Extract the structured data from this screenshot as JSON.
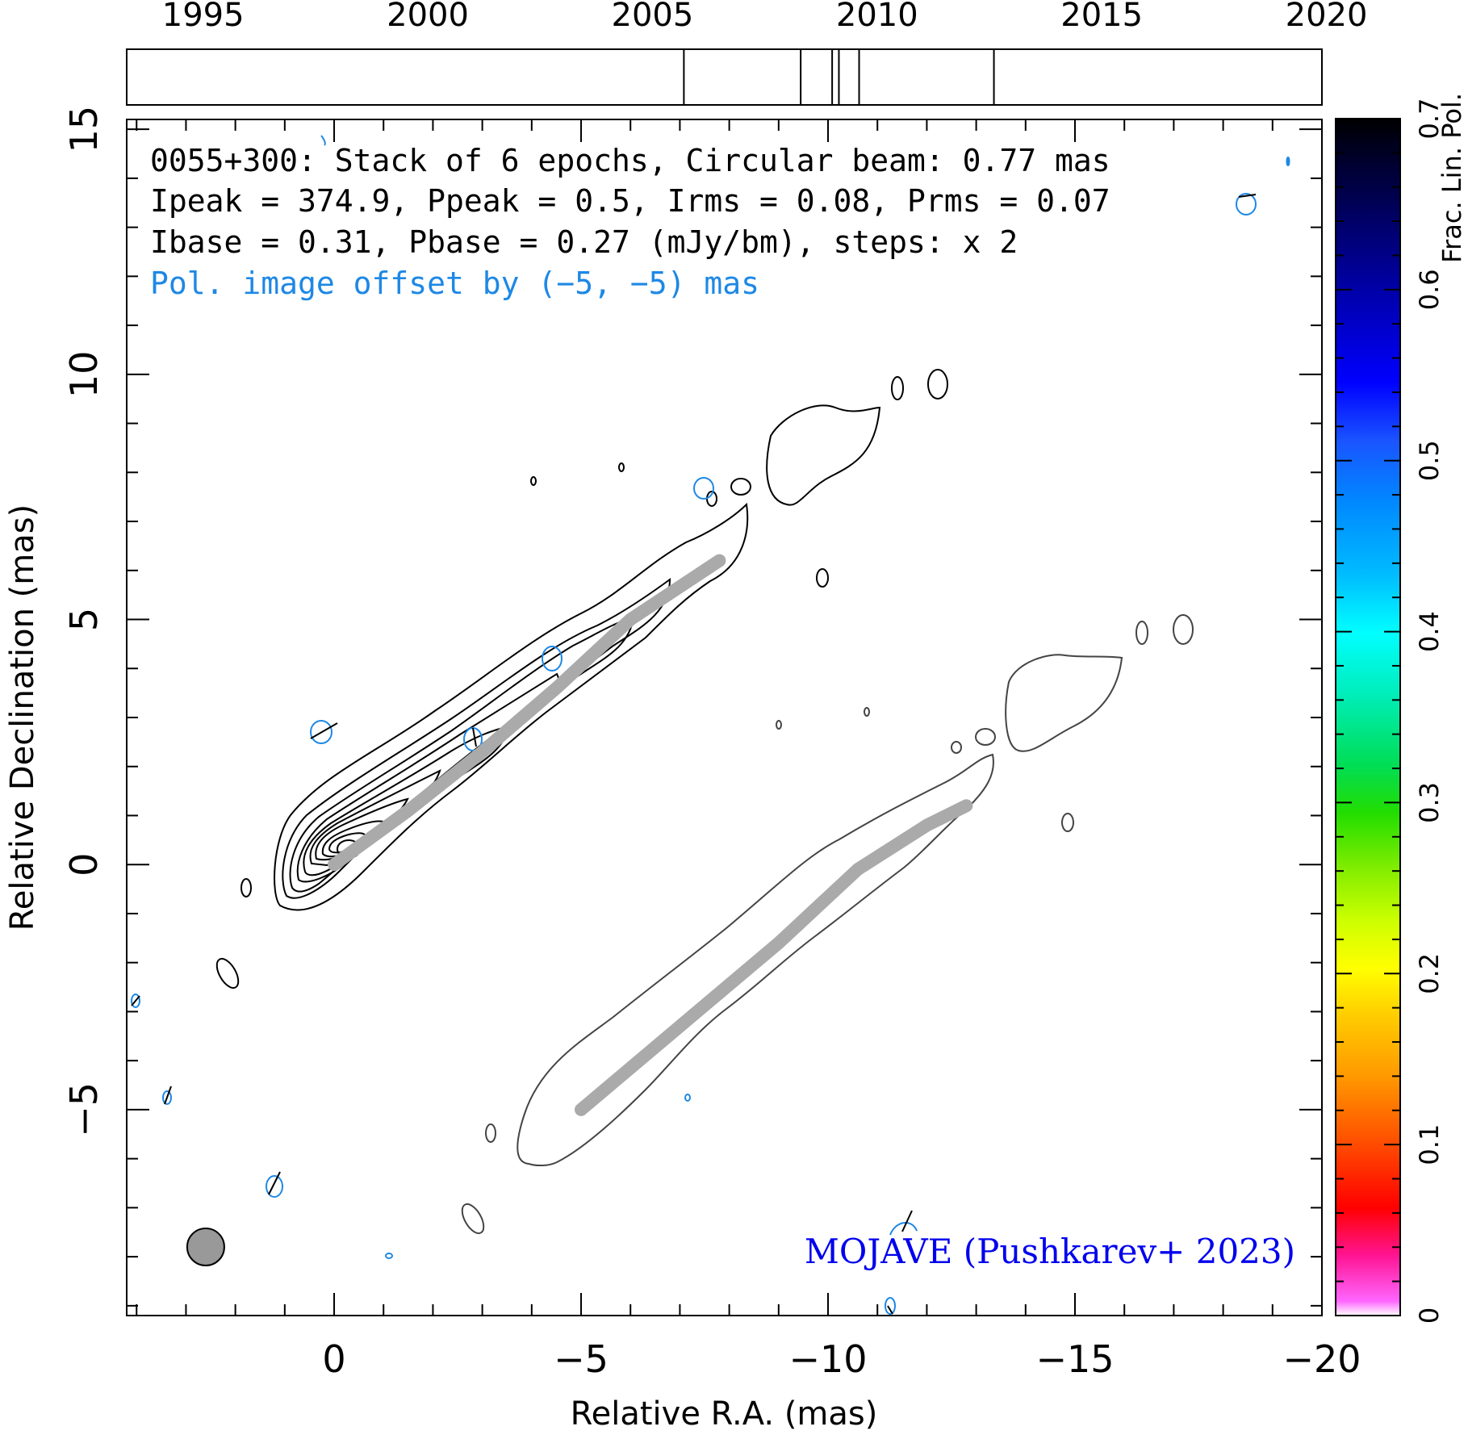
{
  "chart_data": {
    "type": "contour",
    "xlabel": "Relative R.A. (mas)",
    "ylabel": "Relative Declination (mas)",
    "xlim": [
      4.2,
      -20.0
    ],
    "ylim": [
      -9.2,
      15.2
    ],
    "x_ticks": [
      "0",
      "−5",
      "−10",
      "−15",
      "−20"
    ],
    "x_tick_values": [
      0,
      -5,
      -10,
      -15,
      -20
    ],
    "y_ticks": [
      "−5",
      "0",
      "5",
      "10",
      "15"
    ],
    "y_tick_values": [
      -5,
      0,
      5,
      10,
      15
    ],
    "info_lines": [
      "0055+300: Stack of 6 epochs, Circular beam: 0.77 mas",
      "Ipeak = 374.9, Ppeak = 0.5, Irms = 0.08, Prms = 0.07",
      "Ibase = 0.31, Pbase = 0.27 (mJy/bm), steps: x 2"
    ],
    "pol_offset_note": "Pol. image offset by (−5, −5) mas",
    "credit": "MOJAVE (Pushkarev+ 2023)",
    "timeline": {
      "xlim": [
        1993.3,
        2019.9
      ],
      "ticks": [
        "1995",
        "2000",
        "2005",
        "2010",
        "2015",
        "2020"
      ],
      "tick_values": [
        1995,
        2000,
        2005,
        2010,
        2015,
        2020
      ],
      "epochs": [
        2005.7,
        2008.3,
        2009.0,
        2009.15,
        2009.6,
        2012.6
      ]
    },
    "colorbar": {
      "label": "Frac. Lin. Pol.",
      "range": [
        0,
        0.7
      ],
      "ticks": [
        "0",
        "0.1",
        "0.2",
        "0.3",
        "0.4",
        "0.5",
        "0.6",
        "0.7"
      ],
      "tick_values": [
        0,
        0.1,
        0.2,
        0.3,
        0.4,
        0.5,
        0.6,
        0.7
      ]
    },
    "ridge_line_total": [
      [
        0.0,
        0.0
      ],
      [
        -1.5,
        1.1
      ],
      [
        -3.0,
        2.3
      ],
      [
        -4.5,
        3.6
      ],
      [
        -6.0,
        5.0
      ],
      [
        -7.8,
        6.2
      ]
    ],
    "ridge_line_pol": [
      [
        -5.0,
        -5.0
      ],
      [
        -7.0,
        -3.3
      ],
      [
        -9.0,
        -1.6
      ],
      [
        -10.6,
        -0.1
      ],
      [
        -12.0,
        0.8
      ],
      [
        -12.8,
        1.2
      ]
    ],
    "beam_diameter_mas": 0.77,
    "beam_center": [
      2.6,
      -7.8
    ]
  },
  "colors": {
    "total_intensity": "#000000",
    "polarization_contour": "#1e88e5",
    "pol_intensity_contour": "#444444",
    "ridge": "#aaaaaa",
    "credit": "#0000ee",
    "note": "#1e88e5"
  }
}
